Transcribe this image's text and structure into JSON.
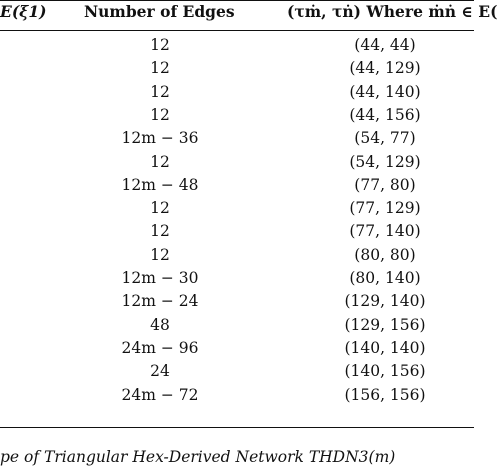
{
  "table": {
    "headers": {
      "col1": "E(ξ1)",
      "col2": "Number of Edges",
      "col3": "(τṁ, τṅ) Where ṁṅ ∈ E("
    },
    "rows": [
      {
        "edges": "12",
        "pair": "(44, 44)"
      },
      {
        "edges": "12",
        "pair": "(44, 129)"
      },
      {
        "edges": "12",
        "pair": "(44, 140)"
      },
      {
        "edges": "12",
        "pair": "(44, 156)"
      },
      {
        "edges": "12m − 36",
        "pair": "(54, 77)"
      },
      {
        "edges": "12",
        "pair": "(54, 129)"
      },
      {
        "edges": "12m − 48",
        "pair": "(77, 80)"
      },
      {
        "edges": "12",
        "pair": "(77, 129)"
      },
      {
        "edges": "12",
        "pair": "(77, 140)"
      },
      {
        "edges": "12",
        "pair": "(80, 80)"
      },
      {
        "edges": "12m − 30",
        "pair": "(80, 140)"
      },
      {
        "edges": "12m − 24",
        "pair": "(129, 140)"
      },
      {
        "edges": "48",
        "pair": "(129, 156)"
      },
      {
        "edges": "24m − 96",
        "pair": "(140, 140)"
      },
      {
        "edges": "24",
        "pair": "(140, 156)"
      },
      {
        "edges": "24m − 72",
        "pair": "(156, 156)"
      }
    ]
  },
  "caption": "pe of Triangular Hex-Derived Network THDN3(m)"
}
